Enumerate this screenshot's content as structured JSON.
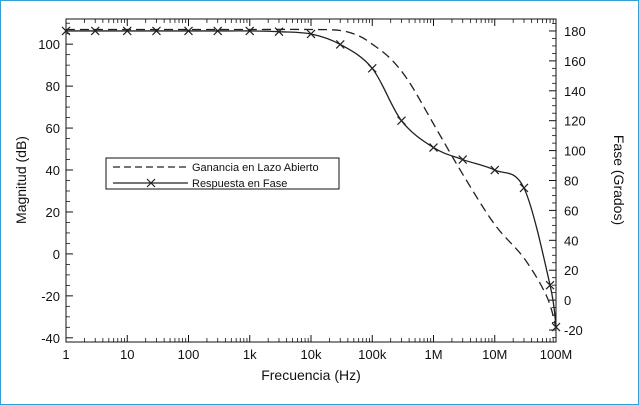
{
  "chart_data": {
    "type": "line",
    "xlabel": "Frecuencia (Hz)",
    "ylabel_left": "Magnitud (dB)",
    "ylabel_right": "Fase (Grados)",
    "x_scale": "log",
    "xlim": [
      1,
      100000000
    ],
    "ylim_left": [
      -42,
      112
    ],
    "ylim_right": [
      -28,
      188
    ],
    "x_ticks": [
      {
        "value": 1,
        "label": "1"
      },
      {
        "value": 10,
        "label": "10"
      },
      {
        "value": 100,
        "label": "100"
      },
      {
        "value": 1000,
        "label": "1k"
      },
      {
        "value": 10000,
        "label": "10k"
      },
      {
        "value": 100000,
        "label": "100k"
      },
      {
        "value": 1000000,
        "label": "1M"
      },
      {
        "value": 10000000,
        "label": "10M"
      },
      {
        "value": 100000000,
        "label": "100M"
      }
    ],
    "y_ticks_left": [
      {
        "value": 100,
        "label": "100"
      },
      {
        "value": 80,
        "label": "80"
      },
      {
        "value": 60,
        "label": "60"
      },
      {
        "value": 40,
        "label": "40"
      },
      {
        "value": 20,
        "label": "20"
      },
      {
        "value": 0,
        "label": "0"
      },
      {
        "value": -20,
        "label": "-20"
      },
      {
        "value": -40,
        "label": "-40"
      }
    ],
    "y_ticks_right": [
      {
        "value": 180,
        "label": "180"
      },
      {
        "value": 160,
        "label": "160"
      },
      {
        "value": 140,
        "label": "140"
      },
      {
        "value": 120,
        "label": "120"
      },
      {
        "value": 100,
        "label": "100"
      },
      {
        "value": 80,
        "label": "80"
      },
      {
        "value": 60,
        "label": "60"
      },
      {
        "value": 40,
        "label": "40"
      },
      {
        "value": 20,
        "label": "20"
      },
      {
        "value": 0,
        "label": "0"
      },
      {
        "value": -20,
        "label": "-20"
      }
    ],
    "series": [
      {
        "name": "Ganancia en Lazo Abierto",
        "axis": "left",
        "style": "dashed",
        "marker": "none",
        "color": "#222222",
        "x": [
          1,
          10,
          100,
          1000,
          10000,
          30000,
          60000,
          100000,
          200000,
          400000,
          1000000,
          3000000,
          10000000,
          30000000,
          70000000,
          100000000
        ],
        "y": [
          107,
          107,
          107,
          107,
          107,
          106.5,
          104,
          100,
          93,
          82,
          62,
          38,
          14,
          -2,
          -20,
          -35
        ]
      },
      {
        "name": "Respuesta en Fase",
        "axis": "right",
        "style": "solid",
        "marker": "x",
        "color": "#222222",
        "x": [
          1,
          3,
          10,
          30,
          100,
          300,
          1000,
          3000,
          10000,
          30000,
          100000,
          300000,
          1000000,
          3000000,
          10000000,
          30000000,
          80000000,
          100000000
        ],
        "y": [
          180,
          180,
          180,
          180,
          180,
          180,
          180,
          179.5,
          178,
          171,
          155,
          120,
          102,
          94,
          87,
          75,
          10,
          -18
        ]
      }
    ],
    "legend": {
      "position": "left-center",
      "framed": true
    },
    "grid": false
  }
}
